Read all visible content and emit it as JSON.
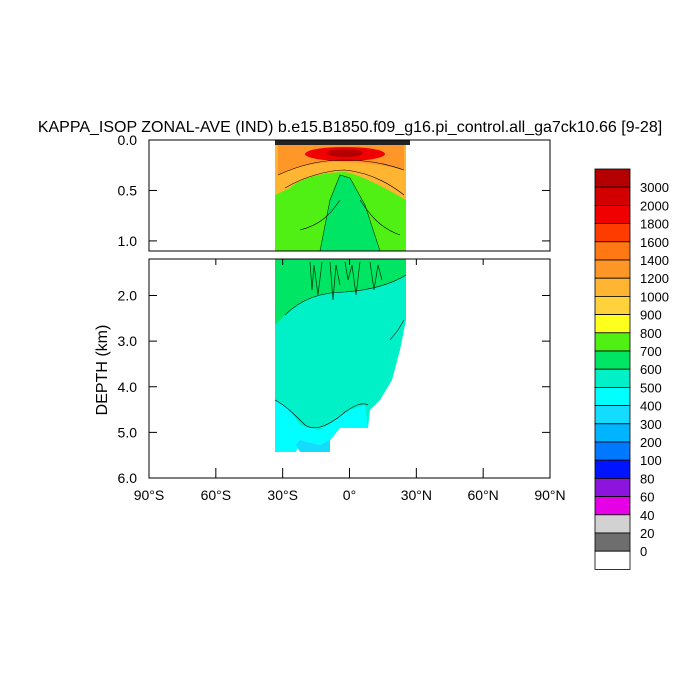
{
  "chart_data": {
    "type": "heatmap",
    "title": "KAPPA_ISOP ZONAL-AVE (IND) b.e15.B1850.f09_g16.pi_control.all_ga7ck10.66 [9-28]",
    "xlabel": "",
    "ylabel": "DEPTH (km)",
    "x_ticks": [
      "90°S",
      "60°S",
      "30°S",
      "0°",
      "30°N",
      "60°N",
      "90°N"
    ],
    "x_tick_values": [
      -90,
      -60,
      -30,
      0,
      30,
      60,
      90
    ],
    "xlim": [
      -90,
      90
    ],
    "panels": [
      {
        "name": "upper",
        "ylim": [
          0,
          1.1
        ],
        "y_ticks": [
          "0.0",
          "0.5",
          "1.0"
        ],
        "y_tick_values": [
          0,
          0.5,
          1.0
        ]
      },
      {
        "name": "lower",
        "ylim": [
          1.2,
          6.0
        ],
        "y_ticks": [
          "2.0",
          "3.0",
          "4.0",
          "5.0",
          "6.0"
        ],
        "y_tick_values": [
          2,
          3,
          4,
          5,
          6
        ]
      }
    ],
    "colorbar": {
      "levels": [
        "3000",
        "2000",
        "1800",
        "1600",
        "1400",
        "1200",
        "1000",
        "900",
        "800",
        "700",
        "600",
        "500",
        "400",
        "300",
        "200",
        "100",
        "80",
        "60",
        "40",
        "20",
        "0"
      ],
      "colors": [
        "#b40000",
        "#d20000",
        "#f00000",
        "#ff3c00",
        "#ff7814",
        "#ff9628",
        "#ffb432",
        "#ffd23c",
        "#ffff1e",
        "#50f014",
        "#00e664",
        "#00f0c8",
        "#00ffff",
        "#14dcff",
        "#00b4ff",
        "#0078ff",
        "#0014ff",
        "#8c14dc",
        "#e600e6",
        "#d2d2d2",
        "#6e6e6e",
        "#ffffff"
      ]
    },
    "field": {
      "lat_range": [
        -34,
        25
      ],
      "bands": [
        {
          "depth": [
            0,
            0.04
          ],
          "value_color": "#222222"
        },
        {
          "depth": [
            0.04,
            0.35
          ],
          "value": 1200
        },
        {
          "depth": [
            0.35,
            1.1
          ],
          "value": 700
        },
        {
          "depth": [
            1.2,
            1.8
          ],
          "value": 600
        },
        {
          "depth": [
            1.8,
            5.4
          ],
          "value": 500
        }
      ]
    }
  }
}
